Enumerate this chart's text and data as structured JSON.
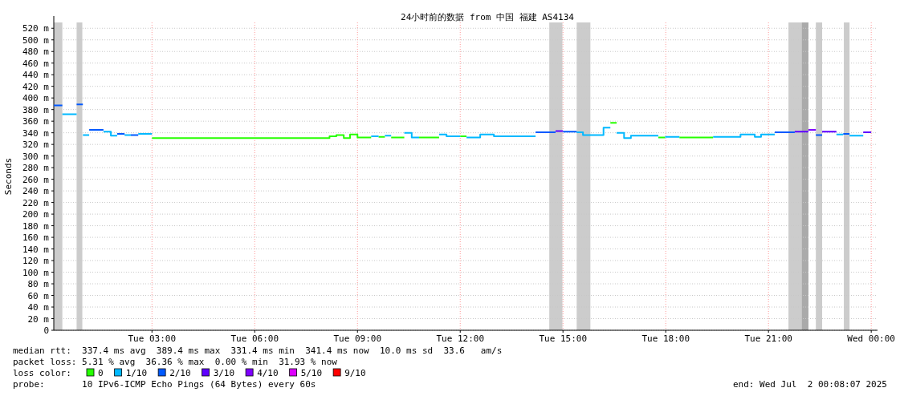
{
  "chart_data": {
    "type": "line",
    "title": "24小时前的数据 from 中国 福建 AS4134",
    "ylabel": "Seconds",
    "legend_title": "loss color:",
    "legend": "bottom",
    "grid": true,
    "series": [
      {
        "name": "0",
        "color": "#26ff00",
        "x": [
          "2025-07-01T03:00",
          "2025-07-01T08:11",
          "2025-07-01T08:11",
          "2025-07-01T08:23",
          "2025-07-01T08:23",
          "2025-07-01T08:36",
          "2025-07-01T08:36",
          "2025-07-01T08:47",
          "2025-07-01T08:47",
          "2025-07-01T09:00",
          "2025-07-01T09:00",
          "2025-07-01T09:24",
          null,
          "2025-07-01T09:37",
          "2025-07-01T09:48",
          null,
          "2025-07-01T09:59",
          "2025-07-01T10:22",
          null,
          "2025-07-01T10:48",
          "2025-07-01T11:23",
          null,
          "2025-07-01T12:00",
          "2025-07-01T12:11",
          null,
          "2025-07-01T16:23",
          "2025-07-01T16:34",
          null,
          "2025-07-01T17:47",
          "2025-07-01T17:59",
          null,
          "2025-07-01T18:24",
          "2025-07-01T19:23"
        ],
        "values": [
          331,
          331,
          334,
          334,
          336,
          336,
          331,
          331,
          337,
          337,
          332,
          332,
          null,
          333,
          333,
          null,
          332,
          332,
          null,
          332,
          332,
          null,
          334,
          334,
          null,
          357,
          357,
          null,
          332,
          332,
          null,
          332,
          332
        ]
      },
      {
        "name": "1/10",
        "color": "#00b8ff",
        "x": [
          "2025-07-01T00:23",
          "2025-07-01T00:48",
          null,
          "2025-07-01T00:59",
          "2025-07-01T01:10",
          null,
          "2025-07-01T01:35",
          "2025-07-01T01:48",
          "2025-07-01T01:48",
          "2025-07-01T01:59",
          null,
          "2025-07-01T02:12",
          "2025-07-01T02:23",
          null,
          "2025-07-01T02:36",
          "2025-07-01T03:00",
          null,
          "2025-07-01T09:24",
          "2025-07-01T09:37",
          null,
          "2025-07-01T09:48",
          "2025-07-01T09:59",
          null,
          "2025-07-01T10:22",
          "2025-07-01T10:35",
          "2025-07-01T10:35",
          "2025-07-01T10:48",
          null,
          "2025-07-01T11:23",
          "2025-07-01T11:36",
          "2025-07-01T11:36",
          "2025-07-01T12:00",
          null,
          "2025-07-01T12:11",
          "2025-07-01T12:35",
          "2025-07-01T12:35",
          "2025-07-01T12:59",
          "2025-07-01T12:59",
          "2025-07-01T14:12",
          null,
          "2025-07-01T15:24",
          "2025-07-01T15:35",
          "2025-07-01T15:35",
          "2025-07-01T16:11",
          "2025-07-01T16:11",
          "2025-07-01T16:23",
          null,
          "2025-07-01T16:34",
          "2025-07-01T16:47",
          "2025-07-01T16:47",
          "2025-07-01T16:59",
          "2025-07-01T16:59",
          "2025-07-01T17:47",
          null,
          "2025-07-01T17:59",
          "2025-07-01T18:24",
          null,
          "2025-07-01T19:23",
          "2025-07-01T20:11",
          "2025-07-01T20:11",
          "2025-07-01T20:36",
          "2025-07-01T20:36",
          "2025-07-01T20:47",
          "2025-07-01T20:47",
          "2025-07-01T21:11",
          null,
          "2025-07-01T22:59",
          "2025-07-01T23:11",
          null,
          "2025-07-01T23:22",
          "2025-07-01T23:46"
        ],
        "values": [
          372,
          372,
          null,
          336,
          336,
          null,
          342,
          342,
          335,
          335,
          null,
          336,
          336,
          null,
          338,
          338,
          null,
          334,
          334,
          null,
          335,
          335,
          null,
          340,
          340,
          332,
          332,
          null,
          337,
          337,
          334,
          334,
          null,
          332,
          332,
          337,
          337,
          334,
          334,
          null,
          341,
          341,
          336,
          336,
          349,
          349,
          null,
          340,
          340,
          331,
          331,
          335,
          335,
          null,
          333,
          333,
          null,
          333,
          333,
          337,
          337,
          333,
          333,
          337,
          337,
          null,
          337,
          337,
          null,
          335,
          335
        ]
      },
      {
        "name": "2/10",
        "color": "#0059ff",
        "x": [
          "2025-07-01T00:08",
          "2025-07-01T00:23",
          null,
          "2025-07-01T00:48",
          "2025-07-01T00:59",
          null,
          "2025-07-01T01:10",
          "2025-07-01T01:35",
          null,
          "2025-07-01T01:59",
          "2025-07-01T02:12",
          null,
          "2025-07-01T02:23",
          "2025-07-01T02:36",
          null,
          "2025-07-01T14:12",
          "2025-07-01T14:47",
          null,
          "2025-07-01T15:00",
          "2025-07-01T15:24",
          null,
          "2025-07-01T21:11",
          "2025-07-01T21:46",
          null,
          "2025-07-01T22:23",
          "2025-07-01T22:34",
          null,
          "2025-07-01T23:11",
          "2025-07-01T23:22"
        ],
        "values": [
          387,
          387,
          null,
          389,
          389,
          null,
          345,
          345,
          null,
          338,
          338,
          null,
          336,
          336,
          null,
          341,
          341,
          null,
          342,
          342,
          null,
          341,
          341,
          null,
          336,
          336,
          null,
          338,
          338
        ]
      },
      {
        "name": "3/10",
        "color": "#5e00ff",
        "x": [
          "2025-07-01T14:47",
          "2025-07-01T15:00",
          null,
          "2025-07-01T21:46",
          "2025-07-01T22:10",
          null,
          "2025-07-01T22:34",
          "2025-07-01T22:59",
          null,
          "2025-07-01T23:46",
          "2025-07-02T00:00"
        ],
        "values": [
          343,
          343,
          null,
          342,
          342,
          null,
          342,
          342,
          null,
          341,
          341
        ]
      },
      {
        "name": "4/10",
        "color": "#7e00ff",
        "x": [
          "2025-07-01T22:10",
          "2025-07-01T22:23"
        ],
        "values": [
          345,
          345
        ]
      },
      {
        "name": "5/10",
        "color": "#dd00ff"
      },
      {
        "name": "9/10",
        "color": "#ff0000"
      }
    ],
    "bands": [
      {
        "axis": "x",
        "from": "2025-07-01T00:08",
        "to": "2025-07-01T00:23",
        "color": "#cccccc"
      },
      {
        "axis": "x",
        "from": "2025-07-01T00:48",
        "to": "2025-07-01T00:58",
        "color": "#cccccc"
      },
      {
        "axis": "x",
        "from": "2025-07-01T14:36",
        "to": "2025-07-01T14:59",
        "color": "#cccccc"
      },
      {
        "axis": "x",
        "from": "2025-07-01T15:24",
        "to": "2025-07-01T15:48",
        "color": "#cccccc"
      },
      {
        "axis": "x",
        "from": "2025-07-01T21:35",
        "to": "2025-07-01T21:58",
        "color": "#cccccc"
      },
      {
        "axis": "x",
        "from": "2025-07-01T21:58",
        "to": "2025-07-01T22:10",
        "color": "#aaaaaa"
      },
      {
        "axis": "x",
        "from": "2025-07-01T22:23",
        "to": "2025-07-01T22:34",
        "color": "#cccccc"
      },
      {
        "axis": "x",
        "from": "2025-07-01T23:12",
        "to": "2025-07-01T23:22",
        "color": "#cccccc"
      }
    ],
    "xlim": [
      "2025-07-01T00:08",
      "2025-07-02T00:11"
    ],
    "xticks": [
      {
        "value": "2025-07-01T03:00",
        "label": "Tue 03:00"
      },
      {
        "value": "2025-07-01T06:00",
        "label": "Tue 06:00"
      },
      {
        "value": "2025-07-01T09:00",
        "label": "Tue 09:00"
      },
      {
        "value": "2025-07-01T12:00",
        "label": "Tue 12:00"
      },
      {
        "value": "2025-07-01T15:00",
        "label": "Tue 15:00"
      },
      {
        "value": "2025-07-01T18:00",
        "label": "Tue 18:00"
      },
      {
        "value": "2025-07-01T21:00",
        "label": "Tue 21:00"
      },
      {
        "value": "2025-07-02T00:00",
        "label": "Wed 00:00"
      }
    ],
    "ylim": [
      0,
      530
    ],
    "yticks": [
      0,
      {
        "value": 20,
        "label": "20 m"
      },
      {
        "value": 40,
        "label": "40 m"
      },
      {
        "value": 60,
        "label": "60 m"
      },
      {
        "value": 80,
        "label": "80 m"
      },
      {
        "value": 100,
        "label": "100 m"
      },
      {
        "value": 120,
        "label": "120 m"
      },
      {
        "value": 140,
        "label": "140 m"
      },
      {
        "value": 160,
        "label": "160 m"
      },
      {
        "value": 180,
        "label": "180 m"
      },
      {
        "value": 200,
        "label": "200 m"
      },
      {
        "value": 220,
        "label": "220 m"
      },
      {
        "value": 240,
        "label": "240 m"
      },
      {
        "value": 260,
        "label": "260 m"
      },
      {
        "value": 280,
        "label": "280 m"
      },
      {
        "value": 300,
        "label": "300 m"
      },
      {
        "value": 320,
        "label": "320 m"
      },
      {
        "value": 340,
        "label": "340 m"
      },
      {
        "value": 360,
        "label": "360 m"
      },
      {
        "value": 380,
        "label": "380 m"
      },
      {
        "value": 400,
        "label": "400 m"
      },
      {
        "value": 420,
        "label": "420 m"
      },
      {
        "value": 440,
        "label": "440 m"
      },
      {
        "value": 460,
        "label": "460 m"
      },
      {
        "value": 480,
        "label": "480 m"
      },
      {
        "value": 500,
        "label": "500 m"
      },
      {
        "value": 520,
        "label": "520 m"
      }
    ],
    "annotations": [
      "median rtt:  337.4 ms avg  389.4 ms max  331.4 ms min  341.4 ms now  10.0 ms sd  33.6   am/s",
      "packet loss: 5.31 % avg  36.36 % max  0.00 % min  31.93 % now",
      "probe:       10 IPv6-ICMP Echo Pings (64 Bytes) every 60s",
      "end: Wed Jul  2 00:08:07 2025"
    ]
  }
}
